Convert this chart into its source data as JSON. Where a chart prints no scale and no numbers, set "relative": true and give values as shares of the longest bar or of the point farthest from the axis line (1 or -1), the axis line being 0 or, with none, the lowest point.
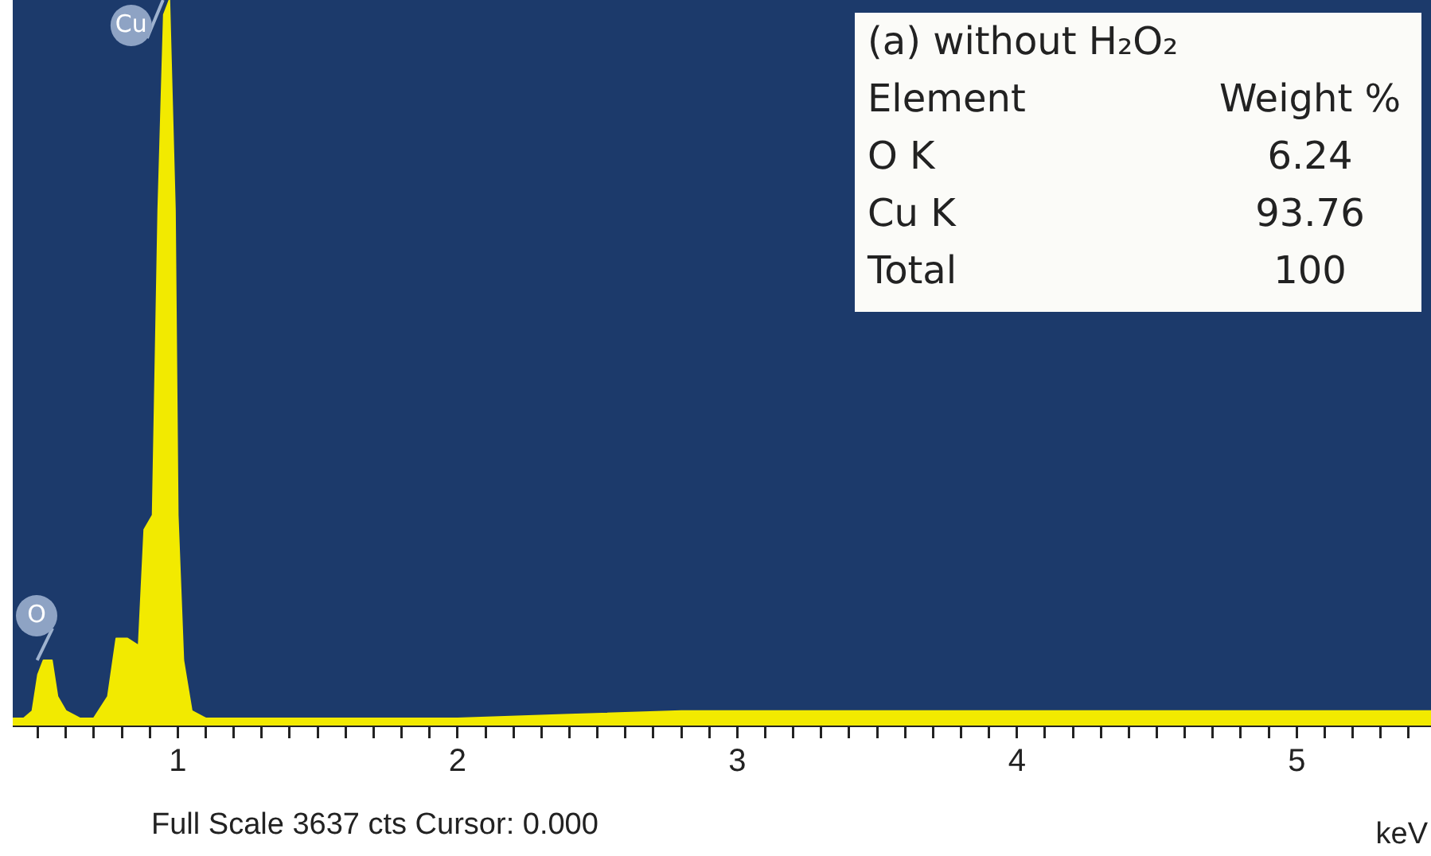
{
  "chart_data": {
    "type": "area",
    "title": "(a) without H₂O₂",
    "xlabel": "keV",
    "relative": true,
    "grid": false,
    "legend": false,
    "tick_labels": "x",
    "marker": "none",
    "xlim": [
      0.41,
      5.48
    ],
    "xticks": [
      {
        "value": 0.5,
        "label": null
      },
      {
        "value": 0.6,
        "label": null
      },
      {
        "value": 0.7,
        "label": null
      },
      {
        "value": 0.8,
        "label": null
      },
      {
        "value": 0.9,
        "label": null
      },
      1,
      {
        "value": 1.1,
        "label": null
      },
      {
        "value": 1.2,
        "label": null
      },
      {
        "value": 1.3,
        "label": null
      },
      {
        "value": 1.4,
        "label": null
      },
      {
        "value": 1.5,
        "label": null
      },
      {
        "value": 1.6,
        "label": null
      },
      {
        "value": 1.7,
        "label": null
      },
      {
        "value": 1.8,
        "label": null
      },
      {
        "value": 1.9,
        "label": null
      },
      2,
      {
        "value": 2.1,
        "label": null
      },
      {
        "value": 2.2,
        "label": null
      },
      {
        "value": 2.3,
        "label": null
      },
      {
        "value": 2.4,
        "label": null
      },
      {
        "value": 2.5,
        "label": null
      },
      {
        "value": 2.6,
        "label": null
      },
      {
        "value": 2.7,
        "label": null
      },
      {
        "value": 2.8,
        "label": null
      },
      {
        "value": 2.9,
        "label": null
      },
      3,
      {
        "value": 3.1,
        "label": null
      },
      {
        "value": 3.2,
        "label": null
      },
      {
        "value": 3.3,
        "label": null
      },
      {
        "value": 3.4,
        "label": null
      },
      {
        "value": 3.5,
        "label": null
      },
      {
        "value": 3.6,
        "label": null
      },
      {
        "value": 3.7,
        "label": null
      },
      {
        "value": 3.8,
        "label": null
      },
      {
        "value": 3.9,
        "label": null
      },
      4,
      {
        "value": 4.1,
        "label": null
      },
      {
        "value": 4.2,
        "label": null
      },
      {
        "value": 4.3,
        "label": null
      },
      {
        "value": 4.4,
        "label": null
      },
      {
        "value": 4.5,
        "label": null
      },
      {
        "value": 4.6,
        "label": null
      },
      {
        "value": 4.7,
        "label": null
      },
      {
        "value": 4.8,
        "label": null
      },
      {
        "value": 4.9,
        "label": null
      },
      5,
      {
        "value": 5.1,
        "label": null
      },
      {
        "value": 5.2,
        "label": null
      },
      {
        "value": 5.3,
        "label": null
      },
      {
        "value": 5.4,
        "label": null
      }
    ],
    "x": [
      0.41,
      0.45,
      0.48,
      0.5,
      0.52,
      0.55,
      0.57,
      0.6,
      0.65,
      0.7,
      0.75,
      0.78,
      0.82,
      0.86,
      0.88,
      0.91,
      0.93,
      0.95,
      0.97,
      0.99,
      1.0,
      1.02,
      1.05,
      1.1,
      1.3,
      1.6,
      2.0,
      2.4,
      2.8,
      3.2,
      3.6,
      4.0,
      4.4,
      4.8,
      5.2,
      5.48
    ],
    "series": [
      {
        "color": "#f2ea00",
        "values": [
          0.01,
          0.01,
          0.02,
          0.07,
          0.09,
          0.09,
          0.04,
          0.02,
          0.01,
          0.01,
          0.04,
          0.12,
          0.12,
          0.11,
          0.27,
          0.29,
          0.71,
          0.98,
          1,
          0.71,
          0.29,
          0.09,
          0.02,
          0.01,
          0.01,
          0.01,
          0.01,
          0.015,
          0.02,
          0.02,
          0.02,
          0.02,
          0.02,
          0.02,
          0.02,
          0.02
        ]
      }
    ],
    "annotations": [
      {
        "text": "Cu",
        "x": 0.97,
        "y": 1
      },
      {
        "text": "O",
        "x": 0.52,
        "y": 0.09
      },
      "Element",
      "Weight %",
      "O K",
      "6.24",
      "Cu K",
      "93.76",
      "Total",
      "100",
      "Full Scale 3637 cts Cursor: 0.000"
    ]
  }
}
